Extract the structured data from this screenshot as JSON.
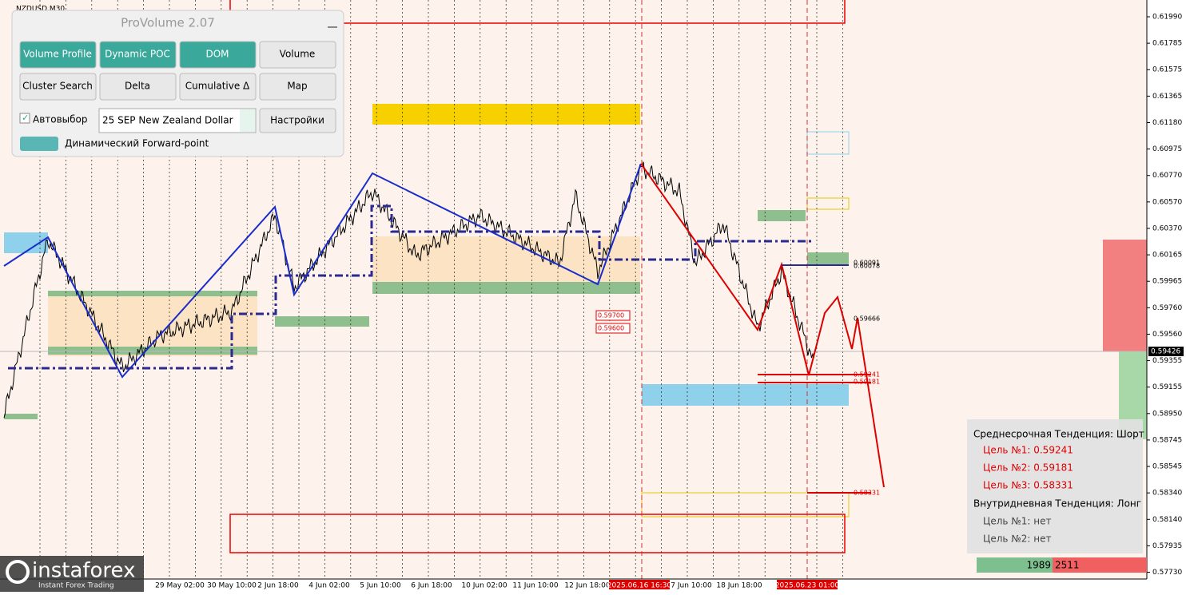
{
  "symbol": "NZDUSD,M30",
  "panel": {
    "title": "ProVolume 2.07",
    "buttons": [
      "Volume Profile",
      "Dynamic POC",
      "DOM",
      "Volume",
      "Cluster Search",
      "Delta",
      "Cumulative Δ",
      "Map"
    ],
    "checkbox": "Автовыбор",
    "instrument": "25 SEP New Zealand Dollar",
    "settings": "Настройки",
    "toggle": "Динамический Forward-point"
  },
  "price_axis": [
    "0.61990",
    "0.61785",
    "0.61575",
    "0.61365",
    "0.61180",
    "0.60975",
    "0.60770",
    "0.60570",
    "0.60370",
    "0.60165",
    "0.59965",
    "0.59760",
    "0.59560",
    "0.59355",
    "0.59155",
    "0.58950",
    "0.58745",
    "0.58545",
    "0.58340",
    "0.58140",
    "0.57935",
    "0.57730"
  ],
  "current_price": "0.59426",
  "time_axis": [
    "29 May 02:00",
    "30 May 10:00",
    "2 Jun 18:00",
    "4 Jun 02:00",
    "5 Jun 10:00",
    "6 Jun 18:00",
    "10 Jun 02:00",
    "11 Jun 10:00",
    "12 Jun 18:00",
    "7 Jun 10:00",
    "18 Jun 18:00"
  ],
  "time_highlights": [
    "2025.06.16 16:30",
    "2025.06.23 01:00"
  ],
  "level_labels": [
    "0.59700",
    "0.59600",
    "0.60091",
    "0.60078",
    "0.59666",
    "0.59241",
    "0.59181",
    "0.58331"
  ],
  "info": [
    "Среднесрочная Тенденция: Шорт",
    "Цель №1: 0.59241",
    "Цель №2: 0.59181",
    "Цель №3: 0.58331",
    "Внутридневная Тенденция: Лонг",
    "Цель №1: нет",
    "Цель №2: нет"
  ],
  "volume_counts": [
    "1989",
    "2511"
  ],
  "logo": {
    "name": "instaforex",
    "tagline": "Instant Forex Trading"
  }
}
